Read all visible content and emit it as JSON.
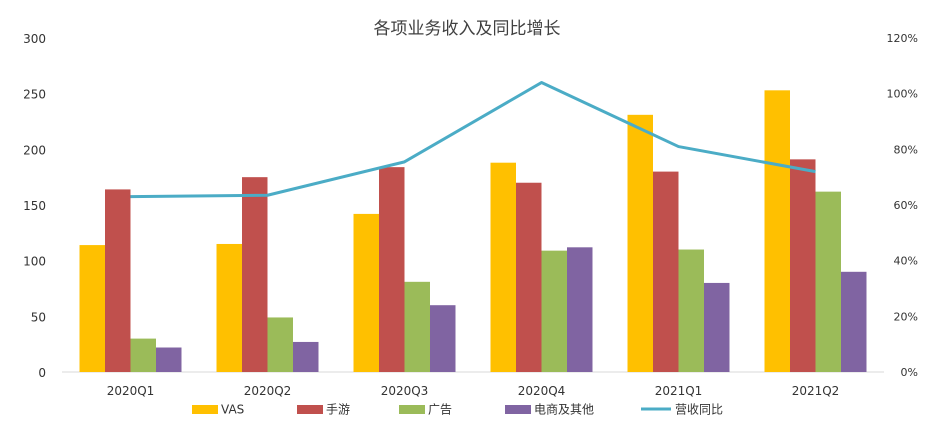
{
  "chart_data": {
    "type": "bar",
    "title": "各项业务收入及同比增长",
    "categories": [
      "2020Q1",
      "2020Q2",
      "2020Q3",
      "2020Q4",
      "2021Q1",
      "2021Q2"
    ],
    "series": [
      {
        "name": "VAS",
        "type": "bar",
        "axis": "left",
        "color": "#FFC000",
        "values": [
          114,
          115,
          142,
          188,
          231,
          253
        ]
      },
      {
        "name": "手游",
        "type": "bar",
        "axis": "left",
        "color": "#C0504D",
        "values": [
          164,
          175,
          184,
          170,
          180,
          191
        ]
      },
      {
        "name": "广告",
        "type": "bar",
        "axis": "left",
        "color": "#9BBB59",
        "values": [
          30,
          49,
          81,
          109,
          110,
          162
        ]
      },
      {
        "name": "电商及其他",
        "type": "bar",
        "axis": "left",
        "color": "#8064A2",
        "values": [
          22,
          27,
          60,
          112,
          80,
          90
        ]
      },
      {
        "name": "营收同比",
        "type": "line",
        "axis": "right",
        "color": "#4BACC6",
        "values": [
          63,
          63.5,
          75.5,
          104,
          81,
          72
        ]
      }
    ],
    "y_left": {
      "ylim": [
        0,
        300
      ],
      "ticks": [
        "0",
        "50",
        "100",
        "150",
        "200",
        "250",
        "300"
      ]
    },
    "y_right": {
      "ylim": [
        0,
        120
      ],
      "ticks": [
        "0%",
        "20%",
        "40%",
        "60%",
        "80%",
        "100%",
        "120%"
      ]
    },
    "legend": {
      "position": "bottom"
    },
    "grid": false
  }
}
